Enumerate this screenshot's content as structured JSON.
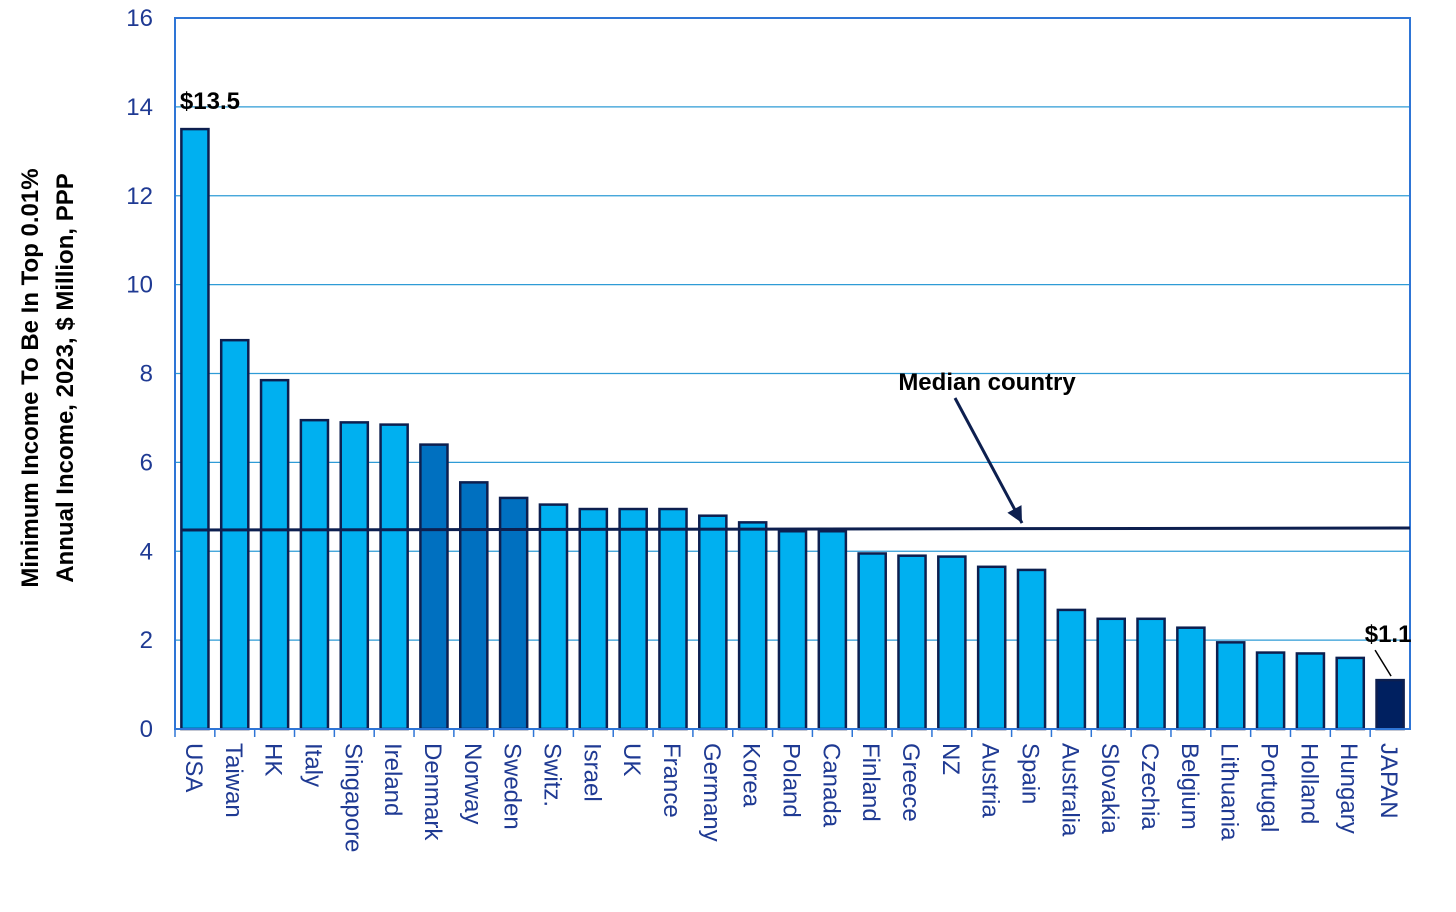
{
  "chart_data": {
    "type": "bar",
    "ylabel_line1": "Minimum Income To Be In Top 0.01%",
    "ylabel_line2": "Annual Income, 2023, $ Million, PPP",
    "ylim": [
      0,
      16
    ],
    "yticks": [
      0,
      2,
      4,
      6,
      8,
      10,
      12,
      14,
      16
    ],
    "grid": true,
    "categories": [
      "USA",
      "Taiwan",
      "HK",
      "Italy",
      "Singapore",
      "Ireland",
      "Denmark",
      "Norway",
      "Sweden",
      "Switz.",
      "Israel",
      "UK",
      "France",
      "Germany",
      "Korea",
      "Poland",
      "Canada",
      "Finland",
      "Greece",
      "NZ",
      "Austria",
      "Spain",
      "Australia",
      "Slovakia",
      "Czechia",
      "Belgium",
      "Lithuania",
      "Portugal",
      "Holland",
      "Hungary",
      "JAPAN"
    ],
    "values": [
      13.5,
      8.75,
      7.85,
      6.95,
      6.9,
      6.85,
      6.4,
      5.55,
      5.2,
      5.05,
      4.95,
      4.95,
      4.95,
      4.8,
      4.65,
      4.45,
      4.45,
      3.95,
      3.9,
      3.88,
      3.65,
      3.58,
      2.68,
      2.48,
      2.48,
      2.28,
      1.95,
      1.72,
      1.7,
      1.6,
      1.1
    ],
    "bar_colors": {
      "default": "#00b0f0",
      "highlight": "#0070c0",
      "japan": "#002060",
      "outline": "#0d1f4f"
    },
    "highlight_categories": [
      "Denmark",
      "Norway",
      "Sweden"
    ],
    "median_value": 4.5,
    "median_label": "Median country",
    "annotations": [
      {
        "category": "USA",
        "text": "$13.5"
      },
      {
        "category": "JAPAN",
        "text": "$1.1"
      }
    ]
  }
}
